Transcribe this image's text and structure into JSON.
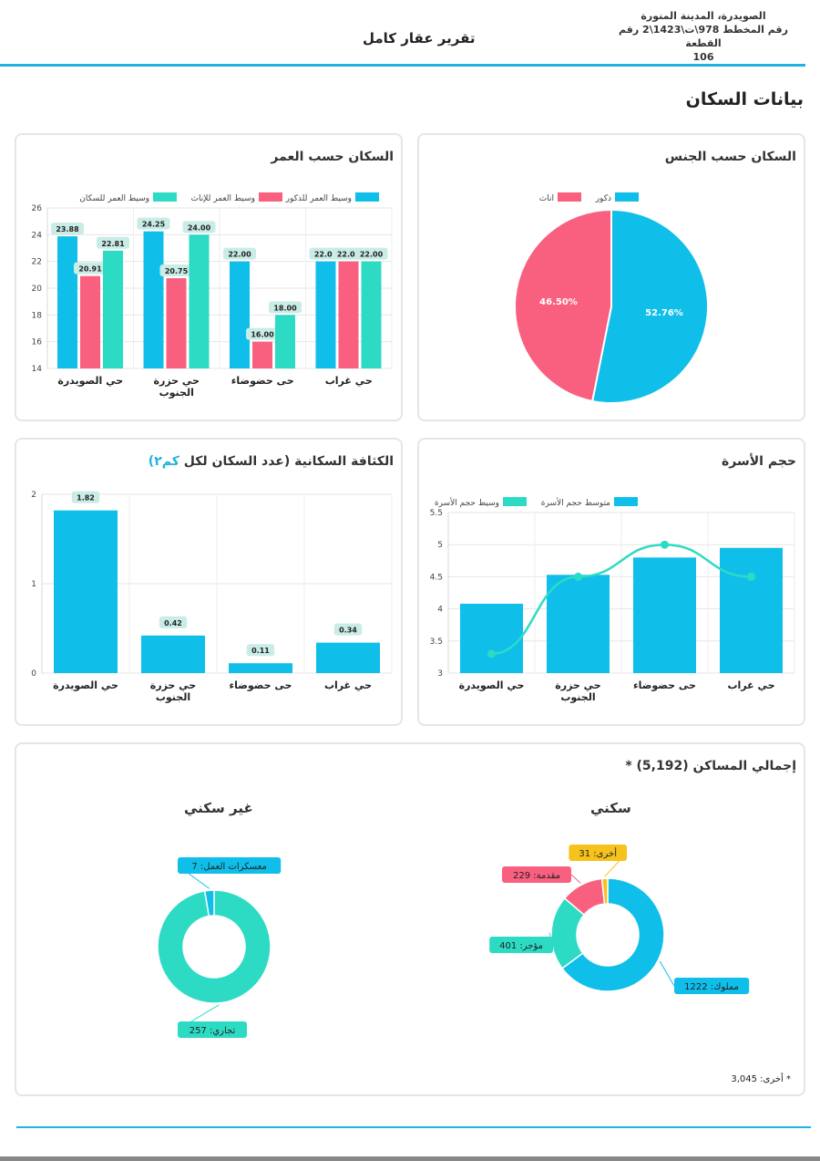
{
  "header": {
    "location_line1": "الصويدرة، المدينة المنورة",
    "location_line2": "رقم المخطط 978\\ت\\1423\\2 رقم القطعة",
    "location_line3": "106",
    "title": "تقرير عقار كامل"
  },
  "section_title": "بيانات السكان",
  "cards": {
    "gender_title": "السكان حسب الجنس",
    "age_title": "السكان حسب العمر",
    "family_title": "حجم الأسرة",
    "density_title_main": "الكثافة السكانية (عدد السكان لكل",
    "density_title_unit": "كم٢)",
    "dwellings_title": "إجمالي المساكن (5,192) *",
    "residential_title": "سكني",
    "nonresidential_title": "غير سكني",
    "footnote": "* أخرى: 3,045"
  },
  "colors": {
    "blue": "#0fbfea",
    "pink": "#f9607f",
    "teal": "#2ddbc4",
    "yellow": "#f6c21c",
    "line": "#1fb3dd"
  },
  "chart_data": [
    {
      "id": "gender",
      "type": "pie",
      "title": "السكان حسب الجنس",
      "legend": [
        "ذكور",
        "اناث"
      ],
      "slices": [
        {
          "name": "ذكور",
          "value": 52.76,
          "label": "52.76%"
        },
        {
          "name": "اناث",
          "value": 46.5,
          "label": "46.50%"
        }
      ]
    },
    {
      "id": "age",
      "type": "bar",
      "title": "السكان حسب العمر",
      "categories": [
        "حي غراب",
        "حى حضوضاء",
        "حي حزرة الجنوب",
        "حي الصويدرة"
      ],
      "ylim": [
        14,
        26
      ],
      "yticks": [
        "14",
        "16",
        "18",
        "20",
        "22",
        "24",
        "26"
      ],
      "series": [
        {
          "name": "وسيط العمر للذكور",
          "values": [
            22.0,
            22.0,
            24.25,
            23.88
          ],
          "labels": [
            "22.00",
            "22.00",
            "24.25",
            "23.88"
          ]
        },
        {
          "name": "وسيط العمر للإناث",
          "values": [
            22.0,
            16.0,
            20.75,
            20.91
          ],
          "labels": [
            "22.00",
            "16.00",
            "20.75",
            "20.91"
          ]
        },
        {
          "name": "وسيط العمر للسكان",
          "values": [
            22.0,
            18.0,
            24.0,
            22.81
          ],
          "labels": [
            "22.00",
            "18.00",
            "24.00",
            "22.81"
          ]
        }
      ]
    },
    {
      "id": "family",
      "type": "bar",
      "title": "حجم الأسرة",
      "categories": [
        "حي غراب",
        "حى حضوضاء",
        "حي حزرة الجنوب",
        "حي الصويدرة"
      ],
      "ylim": [
        3,
        5.5
      ],
      "yticks": [
        "3",
        "3.5",
        "4",
        "4.5",
        "5",
        "5.5"
      ],
      "series": [
        {
          "name": "متوسط حجم الأسرة",
          "kind": "bar",
          "values": [
            4.95,
            4.8,
            4.53,
            4.08
          ]
        },
        {
          "name": "وسيط حجم الأسرة",
          "kind": "line",
          "values": [
            4.5,
            5.0,
            4.5,
            3.3
          ]
        }
      ]
    },
    {
      "id": "density",
      "type": "bar",
      "title": "الكثافة السكانية (عدد السكان لكل كم٢)",
      "categories": [
        "حي غراب",
        "حى حضوضاء",
        "حي حزرة الجنوب",
        "حي الصويدرة"
      ],
      "ylim": [
        0,
        2
      ],
      "yticks": [
        "0",
        "1",
        "2"
      ],
      "values": [
        0.34,
        0.11,
        0.42,
        1.82
      ],
      "labels": [
        "0.34",
        "0.11",
        "0.42",
        "1.82"
      ]
    },
    {
      "id": "residential",
      "type": "pie",
      "title": "سكني",
      "slices": [
        {
          "name": "مملوك",
          "value": 1222,
          "label": "مملوك: 1222"
        },
        {
          "name": "مؤجر",
          "value": 401,
          "label": "مؤجر: 401"
        },
        {
          "name": "مقدمة",
          "value": 229,
          "label": "مقدمة: 229"
        },
        {
          "name": "أخرى",
          "value": 31,
          "label": "أخرى: 31"
        }
      ]
    },
    {
      "id": "nonresidential",
      "type": "pie",
      "title": "غير سكني",
      "slices": [
        {
          "name": "تجاري",
          "value": 257,
          "label": "تجاري: 257"
        },
        {
          "name": "معسكرات العمل",
          "value": 7,
          "label": "معسكرات العمل: 7"
        }
      ]
    }
  ]
}
